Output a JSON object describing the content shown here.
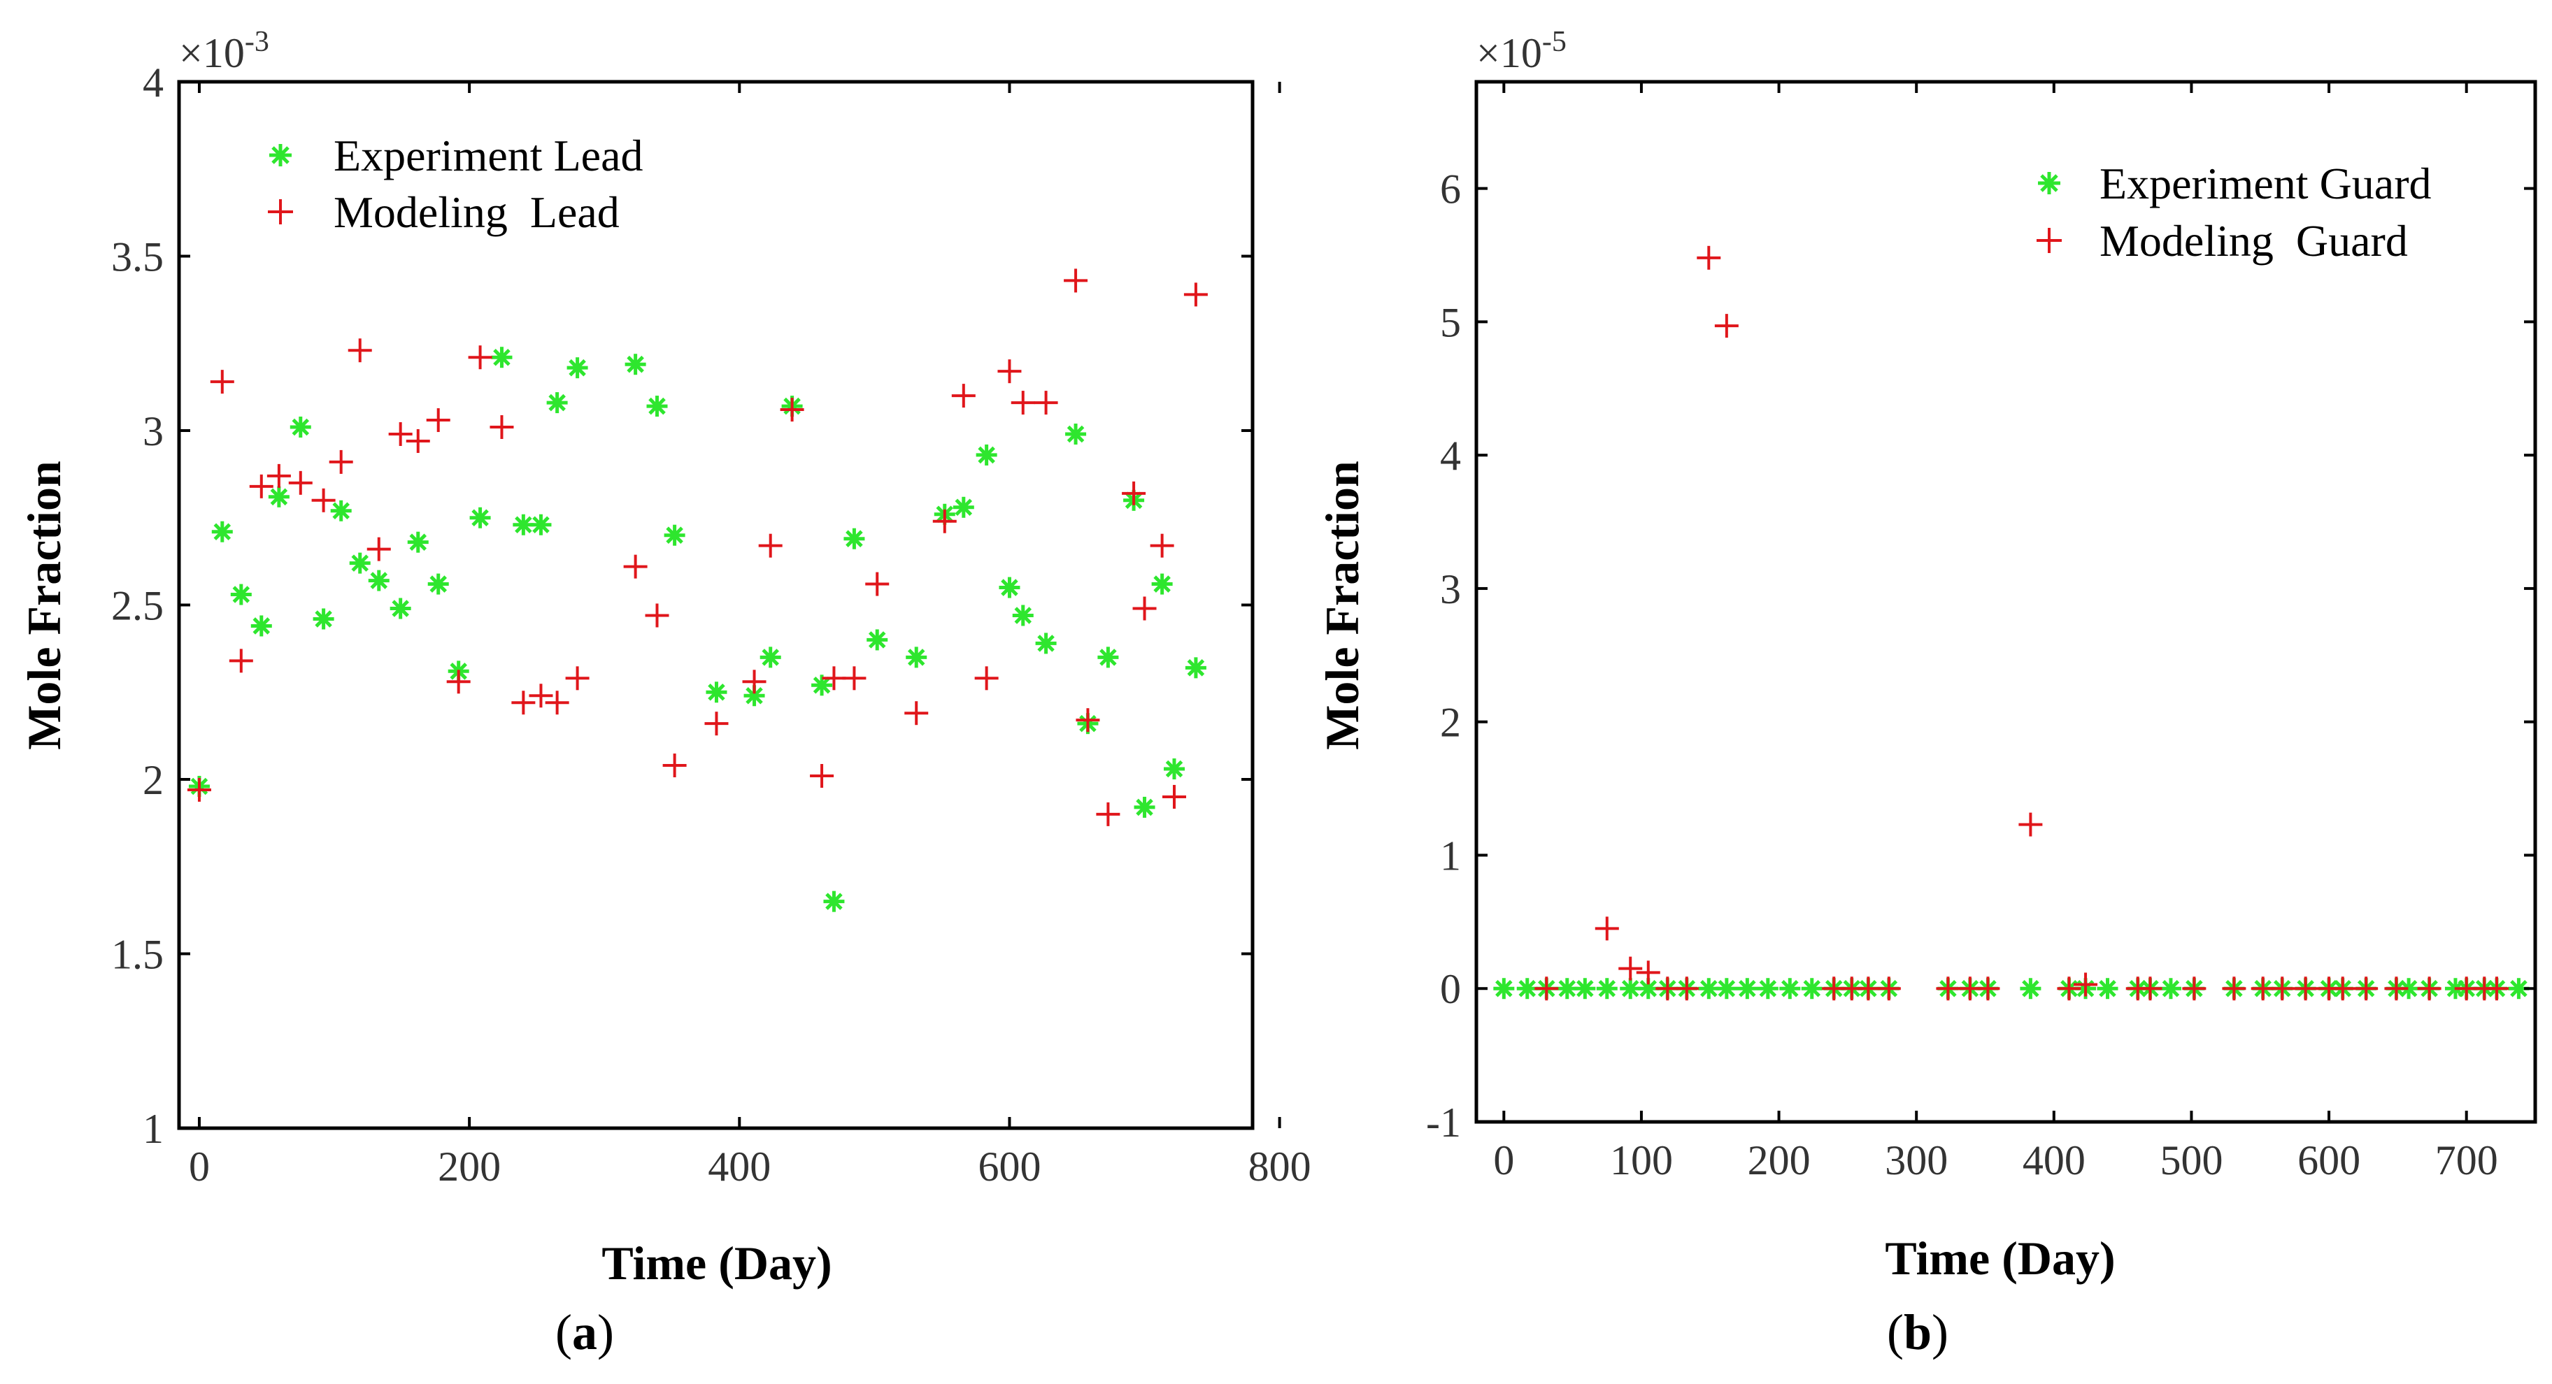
{
  "chart_data": [
    {
      "type": "scatter",
      "panel_label": "a",
      "title": "",
      "xlabel": "Time (Day)",
      "ylabel": "Mole Fraction",
      "y_exponent_base": "×10",
      "y_exponent_power": "-3",
      "xlim": [
        -15,
        780
      ],
      "ylim": [
        1,
        4
      ],
      "xticks": [
        0,
        200,
        400,
        600,
        800
      ],
      "xtick_labels": [
        "0",
        "200",
        "400",
        "600",
        "800"
      ],
      "yticks": [
        1,
        1.5,
        2,
        2.5,
        3,
        3.5,
        4
      ],
      "ytick_labels": [
        "1",
        "1.5",
        "2",
        "2.5",
        "3",
        "3.5",
        "4"
      ],
      "legend_position": "top-left",
      "series": [
        {
          "name": "Experiment Lead",
          "marker": "asterisk",
          "color": "#2ee62e",
          "points": [
            [
              0,
              1.98
            ],
            [
              17,
              2.71
            ],
            [
              31,
              2.53
            ],
            [
              46,
              2.44
            ],
            [
              59,
              2.81
            ],
            [
              75,
              3.01
            ],
            [
              92,
              2.46
            ],
            [
              105,
              2.77
            ],
            [
              119,
              2.62
            ],
            [
              133,
              2.57
            ],
            [
              149,
              2.49
            ],
            [
              162,
              2.68
            ],
            [
              177,
              2.56
            ],
            [
              192,
              2.31
            ],
            [
              208,
              2.75
            ],
            [
              224,
              3.21
            ],
            [
              240,
              2.73
            ],
            [
              253,
              2.73
            ],
            [
              265,
              3.08
            ],
            [
              280,
              3.18
            ],
            [
              323,
              3.19
            ],
            [
              339,
              3.07
            ],
            [
              352,
              2.7
            ],
            [
              383,
              2.25
            ],
            [
              411,
              2.24
            ],
            [
              423,
              2.35
            ],
            [
              439,
              3.07
            ],
            [
              461,
              2.27
            ],
            [
              470,
              1.65
            ],
            [
              485,
              2.69
            ],
            [
              502,
              2.4
            ],
            [
              531,
              2.35
            ],
            [
              552,
              2.76
            ],
            [
              566,
              2.78
            ],
            [
              583,
              2.93
            ],
            [
              600,
              2.55
            ],
            [
              610,
              2.47
            ],
            [
              627,
              2.39
            ],
            [
              649,
              2.99
            ],
            [
              658,
              2.16
            ],
            [
              673,
              2.35
            ],
            [
              692,
              2.8
            ],
            [
              700,
              1.92
            ],
            [
              713,
              2.56
            ],
            [
              722,
              2.03
            ],
            [
              738,
              2.32
            ]
          ]
        },
        {
          "name": "Modeling  Lead",
          "marker": "plus",
          "color": "#e0161b",
          "points": [
            [
              0,
              1.97
            ],
            [
              17,
              3.14
            ],
            [
              31,
              2.34
            ],
            [
              46,
              2.84
            ],
            [
              59,
              2.87
            ],
            [
              75,
              2.85
            ],
            [
              92,
              2.8
            ],
            [
              105,
              2.91
            ],
            [
              119,
              3.23
            ],
            [
              133,
              2.66
            ],
            [
              149,
              2.99
            ],
            [
              162,
              2.97
            ],
            [
              177,
              3.03
            ],
            [
              192,
              2.28
            ],
            [
              208,
              3.21
            ],
            [
              224,
              3.01
            ],
            [
              240,
              2.22
            ],
            [
              253,
              2.24
            ],
            [
              265,
              2.22
            ],
            [
              280,
              2.29
            ],
            [
              323,
              2.61
            ],
            [
              339,
              2.47
            ],
            [
              352,
              2.04
            ],
            [
              383,
              2.16
            ],
            [
              411,
              2.28
            ],
            [
              423,
              2.67
            ],
            [
              439,
              3.06
            ],
            [
              461,
              2.01
            ],
            [
              470,
              2.29
            ],
            [
              485,
              2.29
            ],
            [
              502,
              2.56
            ],
            [
              531,
              2.19
            ],
            [
              552,
              2.74
            ],
            [
              566,
              3.1
            ],
            [
              583,
              2.29
            ],
            [
              600,
              3.17
            ],
            [
              610,
              3.08
            ],
            [
              627,
              3.08
            ],
            [
              649,
              3.43
            ],
            [
              658,
              2.17
            ],
            [
              673,
              1.9
            ],
            [
              692,
              2.82
            ],
            [
              700,
              2.49
            ],
            [
              713,
              2.67
            ],
            [
              722,
              1.95
            ],
            [
              738,
              3.39
            ]
          ]
        }
      ]
    },
    {
      "type": "scatter",
      "panel_label": "b",
      "title": "",
      "xlabel": "Time (Day)",
      "ylabel": "Mole Fraction",
      "y_exponent_base": "×10",
      "y_exponent_power": "-5",
      "xlim": [
        -20,
        750
      ],
      "ylim": [
        -1,
        6.8
      ],
      "xticks": [
        0,
        100,
        200,
        300,
        400,
        500,
        600,
        700
      ],
      "xtick_labels": [
        "0",
        "100",
        "200",
        "300",
        "400",
        "500",
        "600",
        "700"
      ],
      "yticks": [
        -1,
        0,
        1,
        2,
        3,
        4,
        5,
        6
      ],
      "ytick_labels": [
        "-1",
        "0",
        "1",
        "2",
        "3",
        "4",
        "5",
        "6"
      ],
      "legend_position": "top-right",
      "series": [
        {
          "name": "Experiment Guard",
          "marker": "asterisk",
          "color": "#2ee62e",
          "points": [
            [
              0,
              0
            ],
            [
              17,
              0
            ],
            [
              31,
              0
            ],
            [
              46,
              0
            ],
            [
              59,
              0
            ],
            [
              75,
              0
            ],
            [
              92,
              0
            ],
            [
              105,
              0
            ],
            [
              119,
              0
            ],
            [
              133,
              0
            ],
            [
              149,
              0
            ],
            [
              162,
              0
            ],
            [
              177,
              0
            ],
            [
              192,
              0
            ],
            [
              208,
              0
            ],
            [
              224,
              0
            ],
            [
              240,
              0
            ],
            [
              253,
              0
            ],
            [
              265,
              0
            ],
            [
              280,
              0
            ],
            [
              323,
              0
            ],
            [
              339,
              0
            ],
            [
              352,
              0
            ],
            [
              383,
              0
            ],
            [
              411,
              0
            ],
            [
              423,
              0
            ],
            [
              439,
              0
            ],
            [
              461,
              0
            ],
            [
              470,
              0
            ],
            [
              485,
              0
            ],
            [
              502,
              0
            ],
            [
              531,
              0
            ],
            [
              552,
              0
            ],
            [
              566,
              0
            ],
            [
              583,
              0
            ],
            [
              600,
              0
            ],
            [
              610,
              0
            ],
            [
              627,
              0
            ],
            [
              649,
              0
            ],
            [
              658,
              0
            ],
            [
              673,
              0
            ],
            [
              692,
              0
            ],
            [
              700,
              0
            ],
            [
              713,
              0
            ],
            [
              722,
              0
            ],
            [
              738,
              0
            ]
          ]
        },
        {
          "name": "Modeling  Guard",
          "marker": "plus",
          "color": "#e0161b",
          "points": [
            [
              31,
              0
            ],
            [
              75,
              0.45
            ],
            [
              92,
              0.15
            ],
            [
              105,
              0.12
            ],
            [
              119,
              0
            ],
            [
              133,
              0
            ],
            [
              149,
              5.48
            ],
            [
              162,
              4.97
            ],
            [
              240,
              0
            ],
            [
              253,
              0
            ],
            [
              265,
              0
            ],
            [
              280,
              0
            ],
            [
              323,
              0
            ],
            [
              339,
              0
            ],
            [
              352,
              0
            ],
            [
              383,
              1.23
            ],
            [
              411,
              0
            ],
            [
              423,
              0.03
            ],
            [
              461,
              0
            ],
            [
              470,
              0
            ],
            [
              502,
              0
            ],
            [
              531,
              0
            ],
            [
              552,
              0
            ],
            [
              566,
              0
            ],
            [
              583,
              0
            ],
            [
              600,
              0
            ],
            [
              610,
              0
            ],
            [
              627,
              0
            ],
            [
              649,
              0
            ],
            [
              673,
              0
            ],
            [
              700,
              0
            ],
            [
              713,
              0
            ],
            [
              722,
              0
            ]
          ]
        }
      ]
    }
  ]
}
